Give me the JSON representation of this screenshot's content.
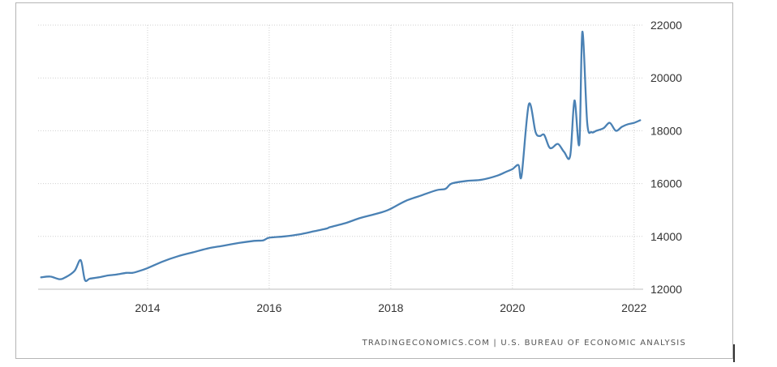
{
  "chart_data": {
    "type": "line",
    "title": "",
    "xlabel": "",
    "ylabel": "",
    "source": "TRADINGECONOMICS.COM | U.S. BUREAU OF ECONOMIC ANALYSIS",
    "xlim": [
      2012.2,
      2022.15
    ],
    "ylim": [
      12000,
      22000
    ],
    "x_ticks": [
      2014,
      2016,
      2018,
      2020,
      2022
    ],
    "x_tick_labels": [
      "2014",
      "2016",
      "2018",
      "2020",
      "2022"
    ],
    "y_ticks": [
      12000,
      14000,
      16000,
      18000,
      20000,
      22000
    ],
    "y_tick_labels": [
      "12000",
      "14000",
      "16000",
      "18000",
      "20000",
      "22000"
    ],
    "grid": true,
    "legend": "none",
    "series_color": "#4a81b4",
    "series": [
      {
        "x": [
          2012.25,
          2012.4,
          2012.55,
          2012.65,
          2012.8,
          2012.9,
          2012.97,
          2013.05,
          2013.2,
          2013.35,
          2013.5,
          2013.65,
          2013.75,
          2013.85,
          2014.0,
          2014.25,
          2014.5,
          2014.75,
          2015.0,
          2015.25,
          2015.5,
          2015.75,
          2015.9,
          2016.0,
          2016.25,
          2016.5,
          2016.75,
          2016.95,
          2017.0,
          2017.25,
          2017.5,
          2017.75,
          2017.9,
          2018.0,
          2018.25,
          2018.5,
          2018.75,
          2018.9,
          2019.0,
          2019.25,
          2019.5,
          2019.75,
          2019.9,
          2020.0,
          2020.1,
          2020.15,
          2020.27,
          2020.38,
          2020.45,
          2020.52,
          2020.6,
          2020.65,
          2020.75,
          2020.85,
          2020.95,
          2021.02,
          2021.1,
          2021.15,
          2021.23,
          2021.3,
          2021.38,
          2021.5,
          2021.6,
          2021.7,
          2021.8,
          2021.9,
          2022.0,
          2022.1
        ],
        "y": [
          12450,
          12480,
          12380,
          12450,
          12700,
          13100,
          12350,
          12400,
          12450,
          12520,
          12560,
          12620,
          12620,
          12680,
          12800,
          13050,
          13250,
          13400,
          13550,
          13650,
          13750,
          13830,
          13850,
          13950,
          14000,
          14080,
          14200,
          14300,
          14350,
          14500,
          14700,
          14850,
          14950,
          15050,
          15350,
          15550,
          15750,
          15800,
          16000,
          16100,
          16150,
          16300,
          16450,
          16550,
          16700,
          16300,
          19000,
          17950,
          17800,
          17850,
          17400,
          17350,
          17500,
          17200,
          17050,
          19150,
          17500,
          21750,
          18300,
          17950,
          18000,
          18100,
          18300,
          18000,
          18150,
          18250,
          18300,
          18400
        ]
      }
    ]
  }
}
